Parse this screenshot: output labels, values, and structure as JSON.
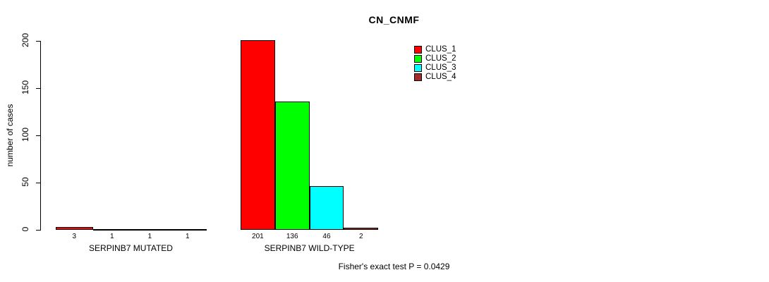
{
  "chart_data": {
    "type": "bar",
    "title": "CN_CNMF",
    "ylabel": "number of cases",
    "ylim": [
      0,
      200
    ],
    "yticks": [
      0,
      50,
      100,
      150,
      200
    ],
    "grid": false,
    "legend_position": "top-right",
    "categories": [
      "SERPINB7 MUTATED",
      "SERPINB7 WILD-TYPE"
    ],
    "series": [
      {
        "name": "CLUS_1",
        "color": "#FF0000",
        "values": [
          3,
          201
        ]
      },
      {
        "name": "CLUS_2",
        "color": "#00FF00",
        "values": [
          1,
          136
        ]
      },
      {
        "name": "CLUS_3",
        "color": "#00FFFF",
        "values": [
          1,
          46
        ]
      },
      {
        "name": "CLUS_4",
        "color": "#A52A2A",
        "values": [
          1,
          2
        ]
      }
    ],
    "bar_value_labels": [
      [
        3,
        1,
        1,
        1
      ],
      [
        201,
        136,
        46,
        2
      ]
    ],
    "annotation": "Fisher's exact test P = 0.0429"
  },
  "colors": {
    "background": "#FFFFFF",
    "axis": "#000000",
    "text": "#000000"
  }
}
